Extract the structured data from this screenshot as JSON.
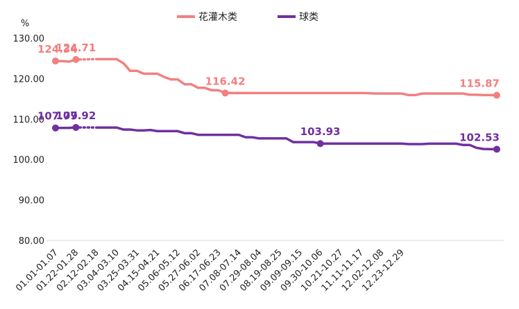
{
  "chart_data": {
    "type": "line",
    "ylabel": "%",
    "ylim": [
      80,
      130
    ],
    "yticks": [
      "80.00",
      "90.00",
      "100.00",
      "110.00",
      "120.00",
      "130.00"
    ],
    "grid": false,
    "legend_position": "top-center",
    "x_tick_labels": [
      "01.01-01.07",
      "01.22-01.28",
      "02.12-02.18",
      "03.04-03.10",
      "03.25-03.31",
      "04.15-04.21",
      "05.06-05.12",
      "05.27-06.02",
      "06.17-06.23",
      "07.08-07.14",
      "07.29-08.04",
      "08.19-08.25",
      "09.09-09.15",
      "09.30-10.06",
      "10.21-10.27",
      "11.11-11.17",
      "12.02-12.08",
      "12.23-12.29"
    ],
    "x_tick_stride": 3,
    "gap": {
      "after_index": 3,
      "before_index": 5
    },
    "series": [
      {
        "name": "花灌木类",
        "color": "#F28080",
        "values": [
          124.34,
          124.3,
          124.2,
          124.71,
          null,
          null,
          124.8,
          124.8,
          124.8,
          124.8,
          123.8,
          121.9,
          121.9,
          121.2,
          121.2,
          121.2,
          120.4,
          119.8,
          119.8,
          118.6,
          118.6,
          117.7,
          117.7,
          117.1,
          117.1,
          116.42,
          116.42,
          116.42,
          116.42,
          116.42,
          116.42,
          116.42,
          116.42,
          116.42,
          116.42,
          116.42,
          116.42,
          116.42,
          116.42,
          116.42,
          116.42,
          116.42,
          116.42,
          116.42,
          116.42,
          116.42,
          116.4,
          116.3,
          116.3,
          116.3,
          116.3,
          116.3,
          115.9,
          115.9,
          116.3,
          116.3,
          116.3,
          116.3,
          116.3,
          116.3,
          116.3,
          116.0,
          116.0,
          115.9,
          115.9,
          115.87
        ],
        "markers": [
          0,
          3,
          25,
          65
        ],
        "labels": [
          {
            "index": 0,
            "text": "124.34"
          },
          {
            "index": 3,
            "text": "124.71"
          },
          {
            "index": 25,
            "text": "116.42"
          },
          {
            "index": 65,
            "text": "115.87"
          }
        ]
      },
      {
        "name": "球类",
        "color": "#7030A0",
        "values": [
          107.79,
          107.8,
          107.8,
          107.92,
          null,
          null,
          107.9,
          107.9,
          107.9,
          107.9,
          107.4,
          107.4,
          107.2,
          107.2,
          107.3,
          107.0,
          107.0,
          107.0,
          107.0,
          106.5,
          106.5,
          106.1,
          106.1,
          106.1,
          106.1,
          106.1,
          106.1,
          106.1,
          105.5,
          105.5,
          105.2,
          105.2,
          105.2,
          105.2,
          105.2,
          104.3,
          104.3,
          104.3,
          104.3,
          103.93,
          103.93,
          103.93,
          103.93,
          103.93,
          103.93,
          103.93,
          103.93,
          103.93,
          103.93,
          103.93,
          103.93,
          103.93,
          103.8,
          103.8,
          103.8,
          103.9,
          103.9,
          103.9,
          103.9,
          103.9,
          103.6,
          103.6,
          102.9,
          102.6,
          102.55,
          102.53
        ],
        "markers": [
          0,
          3,
          39,
          65
        ],
        "labels": [
          {
            "index": 0,
            "text": "107.79"
          },
          {
            "index": 3,
            "text": "107.92"
          },
          {
            "index": 39,
            "text": "103.93"
          },
          {
            "index": 65,
            "text": "102.53"
          }
        ]
      }
    ]
  }
}
